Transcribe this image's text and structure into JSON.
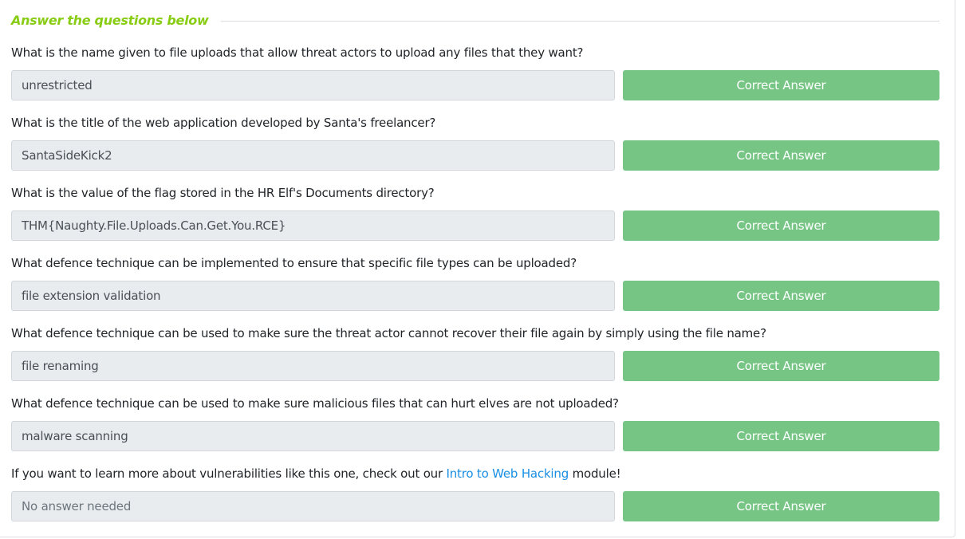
{
  "section": {
    "title": "Answer the questions below"
  },
  "questions": [
    {
      "text": "What is the name given to file uploads that allow threat actors to upload any files that they want?",
      "answer": "unrestricted",
      "button_label": "Correct Answer"
    },
    {
      "text": "What is the title of the web application developed by Santa's freelancer?",
      "answer": "SantaSideKick2",
      "button_label": "Correct Answer"
    },
    {
      "text": "What is the value of the flag stored in the HR Elf's Documents directory?",
      "answer": "THM{Naughty.File.Uploads.Can.Get.You.RCE}",
      "button_label": "Correct Answer"
    },
    {
      "text": "What defence technique can be implemented to ensure that specific file types can be uploaded?",
      "answer": "file extension validation",
      "button_label": "Correct Answer"
    },
    {
      "text": "What defence technique can be used to make sure the threat actor cannot recover their file again by simply using the file name?",
      "answer": "file renaming",
      "button_label": "Correct Answer"
    },
    {
      "text": "What defence technique can be used to make sure malicious files that can hurt elves are not uploaded?",
      "answer": "malware scanning",
      "button_label": "Correct Answer"
    },
    {
      "text_before": "If you want to learn more about vulnerabilities like this one, check out our ",
      "link_text": "Intro to Web Hacking",
      "text_after": " module!",
      "answer_placeholder": "No answer needed",
      "button_label": "Correct Answer"
    }
  ],
  "colors": {
    "title_accent": "#88cc14",
    "correct_button": "#76c585",
    "link": "#1a8fe3",
    "field_background": "#e9ecef"
  }
}
